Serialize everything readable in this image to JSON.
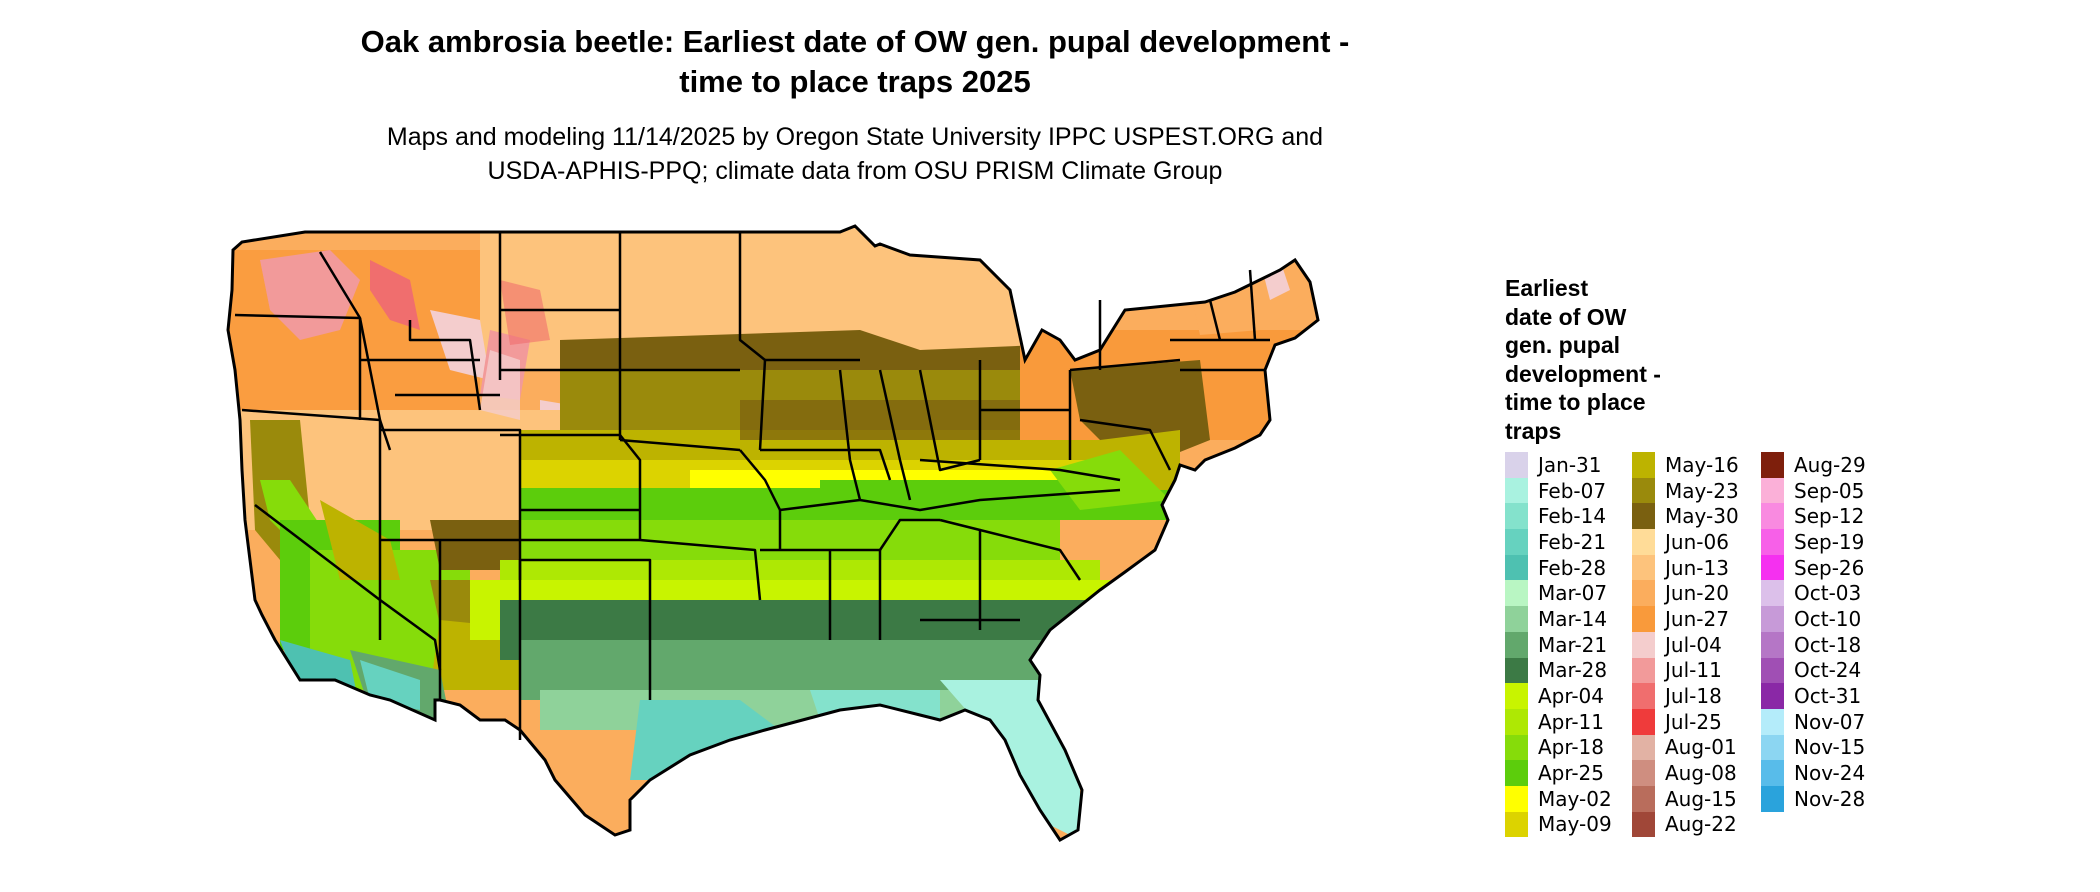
{
  "title_line1": "Oak ambrosia beetle: Earliest date of OW gen. pupal development -",
  "title_line2": "time to place traps 2025",
  "subtitle_line1": "Maps and modeling 11/14/2025 by Oregon State University IPPC USPEST.ORG and",
  "subtitle_line2": "USDA-APHIS-PPQ; climate data from OSU PRISM Climate Group",
  "legend": {
    "title_lines": [
      "Earliest",
      "date of OW",
      "gen. pupal",
      "development -",
      "time to place",
      "traps"
    ],
    "columns": [
      [
        {
          "label": "Jan-31",
          "color": "#d9d2ea"
        },
        {
          "label": "Feb-07",
          "color": "#a9f2e0"
        },
        {
          "label": "Feb-14",
          "color": "#84e2cc"
        },
        {
          "label": "Feb-21",
          "color": "#66d2bf"
        },
        {
          "label": "Feb-28",
          "color": "#4ec1b1"
        },
        {
          "label": "Mar-07",
          "color": "#b9f6c3"
        },
        {
          "label": "Mar-14",
          "color": "#8fd29a"
        },
        {
          "label": "Mar-21",
          "color": "#62a86c"
        },
        {
          "label": "Mar-28",
          "color": "#3c7a45"
        },
        {
          "label": "Apr-04",
          "color": "#c8f400"
        },
        {
          "label": "Apr-11",
          "color": "#aee804"
        },
        {
          "label": "Apr-18",
          "color": "#86dc0a"
        },
        {
          "label": "Apr-25",
          "color": "#5ccd0c"
        },
        {
          "label": "May-02",
          "color": "#ffff00"
        },
        {
          "label": "May-09",
          "color": "#dcd300"
        }
      ],
      [
        {
          "label": "May-16",
          "color": "#bdb300"
        },
        {
          "label": "May-23",
          "color": "#9a8a0c"
        },
        {
          "label": "May-30",
          "color": "#7a6010"
        },
        {
          "label": "Jun-06",
          "color": "#ffdc98"
        },
        {
          "label": "Jun-13",
          "color": "#fdc37c"
        },
        {
          "label": "Jun-20",
          "color": "#fbad5d"
        },
        {
          "label": "Jun-27",
          "color": "#f99a3b"
        },
        {
          "label": "Jul-04",
          "color": "#f4cdcd"
        },
        {
          "label": "Jul-11",
          "color": "#f29a9a"
        },
        {
          "label": "Jul-18",
          "color": "#f06e6e"
        },
        {
          "label": "Jul-25",
          "color": "#ef3b3b"
        },
        {
          "label": "Aug-01",
          "color": "#e2b2a4"
        },
        {
          "label": "Aug-08",
          "color": "#cf8e80"
        },
        {
          "label": "Aug-15",
          "color": "#b96d5c"
        },
        {
          "label": "Aug-22",
          "color": "#a04738"
        }
      ],
      [
        {
          "label": "Aug-29",
          "color": "#7e1f0c"
        },
        {
          "label": "Sep-05",
          "color": "#fbb0d8"
        },
        {
          "label": "Sep-12",
          "color": "#f98ae0"
        },
        {
          "label": "Sep-19",
          "color": "#f760e8"
        },
        {
          "label": "Sep-26",
          "color": "#f530f0"
        },
        {
          "label": "Oct-03",
          "color": "#dcc0ea"
        },
        {
          "label": "Oct-10",
          "color": "#c79ad8"
        },
        {
          "label": "Oct-18",
          "color": "#b576c6"
        },
        {
          "label": "Oct-24",
          "color": "#a04fb4"
        },
        {
          "label": "Oct-31",
          "color": "#8a28a6"
        },
        {
          "label": "Nov-07",
          "color": "#b4ecfa"
        },
        {
          "label": "Nov-15",
          "color": "#8cd6f2"
        },
        {
          "label": "Nov-24",
          "color": "#58bcea"
        },
        {
          "label": "Nov-28",
          "color": "#2aa3dc"
        }
      ]
    ]
  }
}
